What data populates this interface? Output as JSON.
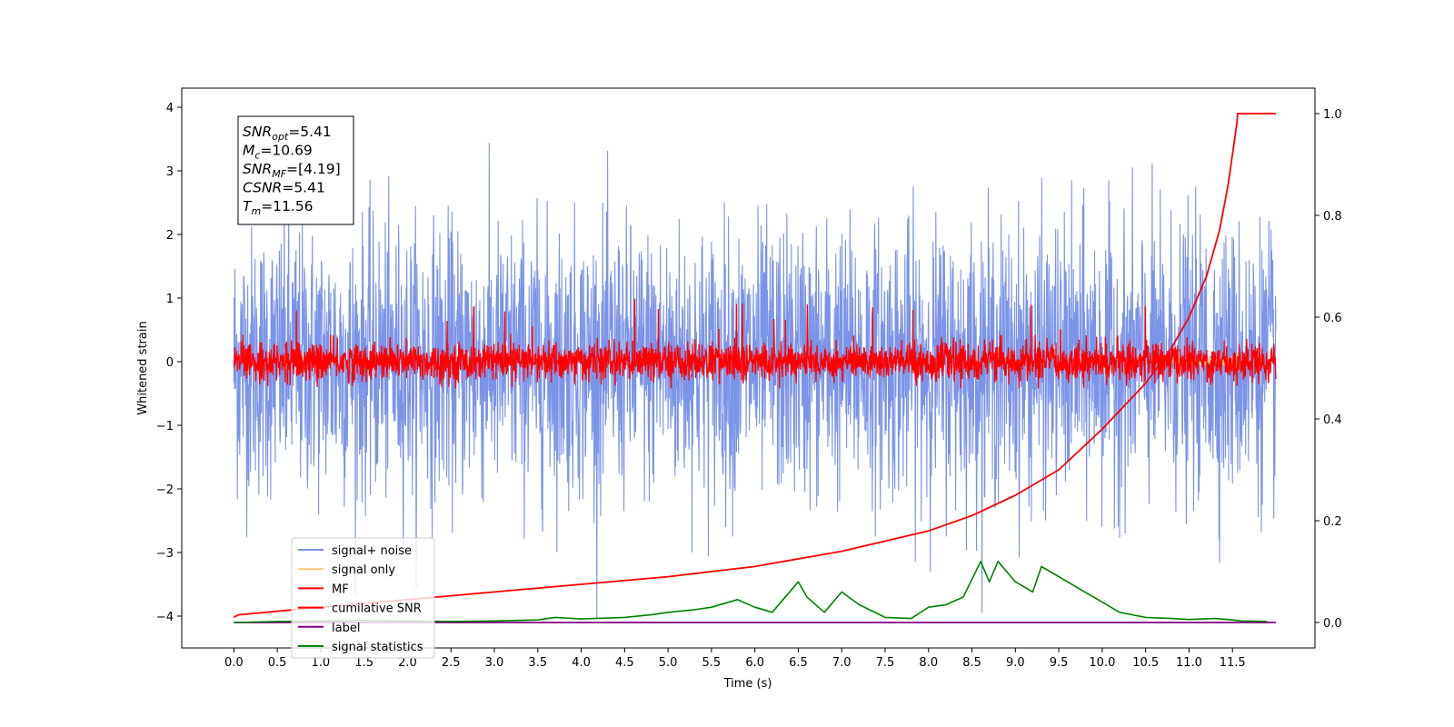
{
  "chart_data": {
    "type": "line",
    "xlabel": "Time (s)",
    "ylabel_left": "Whitened strain",
    "xlim": [
      -0.6,
      12.45
    ],
    "ylim_left": [
      -4.5,
      4.3
    ],
    "ylim_right": [
      -0.05,
      1.05
    ],
    "x_ticks": [
      0.0,
      0.5,
      1.0,
      1.5,
      2.0,
      2.5,
      3.0,
      3.5,
      4.0,
      4.5,
      5.0,
      5.5,
      6.0,
      6.5,
      7.0,
      7.5,
      8.0,
      8.5,
      9.0,
      9.5,
      10.0,
      10.5,
      11.0,
      11.5
    ],
    "x_tick_labels": [
      "0.0",
      "0.5",
      "1.0",
      "1.5",
      "2.0",
      "2.5",
      "3.0",
      "3.5",
      "4.0",
      "4.5",
      "5.0",
      "5.5",
      "6.0",
      "6.5",
      "7.0",
      "7.5",
      "8.0",
      "8.5",
      "9.0",
      "9.5",
      "10.0",
      "10.5",
      "11.0",
      "11.5"
    ],
    "y_ticks_left": [
      -4,
      -3,
      -2,
      -1,
      0,
      1,
      2,
      3,
      4
    ],
    "y_tick_labels_left": [
      "−4",
      "−3",
      "−2",
      "−1",
      "0",
      "1",
      "2",
      "3",
      "4"
    ],
    "y_ticks_right": [
      0.0,
      0.2,
      0.4,
      0.6,
      0.8,
      1.0
    ],
    "y_tick_labels_right": [
      "0.0",
      "0.2",
      "0.4",
      "0.6",
      "0.8",
      "1.0"
    ],
    "grid": false,
    "legend_position": "lower-left",
    "info_box": {
      "lines": [
        {
          "base": "SNR",
          "sub": "opt",
          "value": "=5.41"
        },
        {
          "base": "M",
          "sub": "c",
          "value": "=10.69"
        },
        {
          "base": "SNR",
          "sub": "MF",
          "value": "=[4.19]"
        },
        {
          "base": "CSNR",
          "sub": "",
          "value": "=5.41"
        },
        {
          "base": "T",
          "sub": "m",
          "value": "=11.56"
        }
      ]
    },
    "series": [
      {
        "name": "signal+ noise",
        "axis": "left",
        "color": "#7b93e8",
        "x_range": [
          0.0,
          12.0
        ],
        "approx_std": 1.0,
        "approx_peak_max": 3.9,
        "approx_peak_min": -4.05
      },
      {
        "name": "signal only",
        "axis": "left",
        "color": "#f5c77e",
        "chirp_end": 11.56,
        "approx_peak": 0.95
      },
      {
        "name": "MF",
        "axis": "left",
        "color": "#ff0000",
        "x_range": [
          0.0,
          12.0
        ],
        "approx_std": 0.15,
        "approx_peak_max": 1.0,
        "approx_peak_min": -0.42
      },
      {
        "name": "cumilative SNR",
        "axis": "right",
        "color": "#ff0000",
        "x": [
          0.0,
          0.05,
          1.0,
          2.0,
          3.0,
          4.0,
          5.0,
          6.0,
          7.0,
          8.0,
          8.5,
          9.0,
          9.5,
          10.0,
          10.5,
          10.8,
          11.0,
          11.2,
          11.35,
          11.45,
          11.5,
          11.55,
          11.56,
          12.0
        ],
        "values": [
          0.01,
          0.015,
          0.03,
          0.045,
          0.06,
          0.075,
          0.09,
          0.11,
          0.14,
          0.18,
          0.21,
          0.25,
          0.3,
          0.38,
          0.47,
          0.54,
          0.6,
          0.68,
          0.77,
          0.86,
          0.92,
          0.98,
          1.0,
          1.0
        ]
      },
      {
        "name": "label",
        "axis": "right",
        "color": "#800080",
        "x": [
          0.0,
          12.0
        ],
        "values": [
          0.0,
          0.0
        ]
      },
      {
        "name": "signal statistics",
        "axis": "right",
        "color": "#008000",
        "x": [
          0.0,
          0.5,
          1.0,
          1.5,
          2.0,
          2.5,
          3.0,
          3.5,
          3.7,
          4.0,
          4.5,
          4.8,
          5.0,
          5.3,
          5.5,
          5.8,
          6.0,
          6.2,
          6.5,
          6.6,
          6.8,
          7.0,
          7.2,
          7.5,
          7.8,
          8.0,
          8.2,
          8.4,
          8.6,
          8.7,
          8.8,
          9.0,
          9.2,
          9.3,
          9.4,
          9.6,
          9.8,
          10.0,
          10.2,
          10.5,
          10.8,
          11.0,
          11.3,
          11.5,
          11.6,
          11.9
        ],
        "values": [
          0.0,
          0.002,
          0.003,
          0.004,
          0.003,
          0.002,
          0.003,
          0.005,
          0.01,
          0.007,
          0.01,
          0.015,
          0.02,
          0.025,
          0.03,
          0.045,
          0.03,
          0.02,
          0.08,
          0.05,
          0.02,
          0.06,
          0.035,
          0.01,
          0.008,
          0.03,
          0.035,
          0.05,
          0.12,
          0.08,
          0.12,
          0.08,
          0.06,
          0.11,
          0.1,
          0.08,
          0.06,
          0.04,
          0.02,
          0.01,
          0.008,
          0.006,
          0.008,
          0.005,
          0.003,
          0.002
        ]
      }
    ]
  }
}
